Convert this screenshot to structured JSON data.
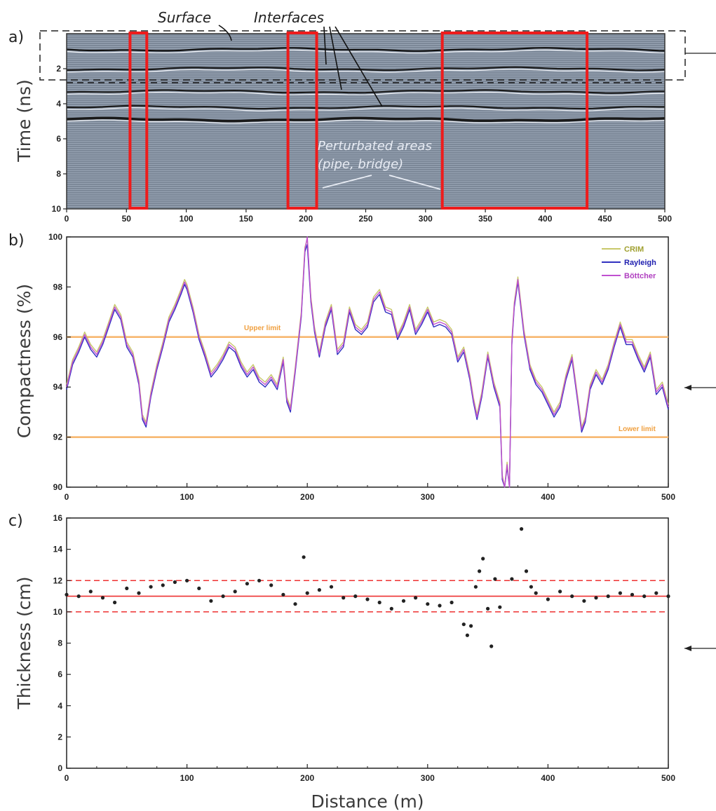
{
  "panels": {
    "a": {
      "label": "a)",
      "ylabel": "Time (ns)",
      "annotations": {
        "surface": "Surface",
        "interfaces": "Interfaces",
        "perturbated_line1": "Perturbated areas",
        "perturbated_line2": "(pipe, bridge)"
      },
      "xticks": [
        "0",
        "50",
        "100",
        "150",
        "200",
        "250",
        "300",
        "350",
        "400",
        "450",
        "500"
      ],
      "yticks": [
        "2",
        "4",
        "6",
        "8",
        "10"
      ]
    },
    "b": {
      "label": "b)",
      "upper_limit_label": "Upper limit",
      "lower_limit_label": "Lower limit"
    },
    "c": {
      "label": "c)"
    }
  },
  "colors": {
    "crim": "#c8c86a",
    "rayleigh": "#3030c0",
    "bottcher": "#c050d0",
    "limit_line": "#f7b46a",
    "red_box": "#ee1c1c",
    "mean_line": "#ee3030",
    "gpr_bg": "#7c8898"
  },
  "chart_data": [
    {
      "type": "heatmap",
      "panel": "a",
      "xlabel": "",
      "ylabel": "Time (ns)",
      "xlim": [
        0,
        500
      ],
      "ylim": [
        10,
        0
      ],
      "interfaces_ns": [
        0.9,
        2.0,
        3.3,
        4.2,
        4.9
      ],
      "dashed_box_ns": [
        0,
        2.8
      ],
      "perturbated_boxes_m": [
        [
          53,
          67
        ],
        [
          185,
          209
        ],
        [
          314,
          435
        ]
      ]
    },
    {
      "type": "line",
      "panel": "b",
      "xlabel": "",
      "ylabel": "Compactness (%)",
      "xlim": [
        0,
        500
      ],
      "ylim": [
        90,
        100
      ],
      "yticks": [
        90,
        92,
        94,
        96,
        98,
        100
      ],
      "xticks": [
        0,
        100,
        200,
        300,
        400,
        500
      ],
      "upper_limit": 96,
      "lower_limit": 92,
      "legend": [
        "CRIM",
        "Rayleigh",
        "Böttcher"
      ],
      "legend_position": "top-right",
      "x": [
        0,
        5,
        10,
        15,
        20,
        25,
        30,
        35,
        40,
        45,
        50,
        55,
        60,
        63,
        66,
        70,
        75,
        80,
        85,
        90,
        95,
        98,
        100,
        105,
        110,
        115,
        120,
        125,
        130,
        135,
        140,
        145,
        150,
        155,
        160,
        165,
        170,
        175,
        180,
        183,
        186,
        190,
        195,
        198,
        200,
        203,
        206,
        210,
        215,
        220,
        225,
        230,
        235,
        240,
        245,
        250,
        255,
        260,
        265,
        270,
        275,
        280,
        285,
        290,
        295,
        300,
        305,
        310,
        315,
        320,
        325,
        330,
        335,
        338,
        341,
        345,
        350,
        355,
        360,
        362,
        364,
        366,
        368,
        370,
        372,
        375,
        380,
        385,
        390,
        395,
        400,
        405,
        410,
        415,
        420,
        425,
        428,
        431,
        435,
        440,
        445,
        450,
        455,
        460,
        465,
        470,
        475,
        480,
        485,
        490,
        495,
        500
      ],
      "series": [
        {
          "name": "CRIM",
          "values": [
            94.1,
            95.1,
            95.6,
            96.2,
            95.7,
            95.4,
            95.9,
            96.6,
            97.3,
            96.9,
            95.8,
            95.4,
            94.3,
            92.9,
            92.6,
            93.8,
            94.9,
            95.8,
            96.8,
            97.3,
            97.9,
            98.3,
            98.1,
            97.2,
            96.1,
            95.4,
            94.6,
            94.9,
            95.3,
            95.8,
            95.6,
            95.0,
            94.6,
            94.9,
            94.4,
            94.2,
            94.5,
            94.1,
            95.2,
            93.6,
            93.2,
            94.8,
            97.0,
            99.6,
            99.9,
            97.6,
            96.4,
            95.4,
            96.6,
            97.3,
            95.5,
            95.8,
            97.2,
            96.5,
            96.3,
            96.6,
            97.6,
            97.9,
            97.2,
            97.1,
            96.1,
            96.6,
            97.3,
            96.3,
            96.7,
            97.2,
            96.6,
            96.7,
            96.6,
            96.3,
            95.2,
            95.6,
            94.5,
            93.6,
            92.9,
            93.8,
            95.4,
            94.2,
            93.4,
            90.5,
            90.0,
            91.0,
            90.0,
            95.9,
            97.4,
            98.4,
            96.3,
            94.9,
            94.3,
            94.0,
            93.5,
            93.0,
            93.4,
            94.5,
            95.3,
            93.5,
            92.4,
            92.8,
            94.1,
            94.7,
            94.3,
            94.9,
            95.8,
            96.6,
            95.9,
            95.9,
            95.3,
            94.8,
            95.4,
            93.9,
            94.2,
            93.3
          ]
        },
        {
          "name": "Rayleigh",
          "values": [
            93.9,
            94.9,
            95.4,
            96.0,
            95.5,
            95.2,
            95.7,
            96.4,
            97.1,
            96.7,
            95.6,
            95.2,
            94.1,
            92.7,
            92.4,
            93.6,
            94.7,
            95.6,
            96.6,
            97.1,
            97.7,
            98.1,
            97.9,
            97.0,
            95.9,
            95.2,
            94.4,
            94.7,
            95.1,
            95.6,
            95.4,
            94.8,
            94.4,
            94.7,
            94.2,
            94.0,
            94.3,
            93.9,
            95.0,
            93.4,
            93.0,
            94.6,
            96.8,
            99.4,
            99.7,
            97.4,
            96.2,
            95.2,
            96.4,
            97.1,
            95.3,
            95.6,
            97.0,
            96.3,
            96.1,
            96.4,
            97.4,
            97.7,
            97.0,
            96.9,
            95.9,
            96.4,
            97.1,
            96.1,
            96.5,
            97.0,
            96.4,
            96.5,
            96.4,
            96.1,
            95.0,
            95.4,
            94.3,
            93.4,
            92.7,
            93.6,
            95.2,
            94.0,
            93.2,
            90.3,
            90.0,
            90.8,
            90.0,
            95.7,
            97.2,
            98.2,
            96.1,
            94.7,
            94.1,
            93.8,
            93.3,
            92.8,
            93.2,
            94.3,
            95.1,
            93.3,
            92.2,
            92.6,
            93.9,
            94.5,
            94.1,
            94.7,
            95.6,
            96.4,
            95.7,
            95.7,
            95.1,
            94.6,
            95.2,
            93.7,
            94.0,
            93.1
          ]
        },
        {
          "name": "Böttcher",
          "values": [
            94.0,
            95.0,
            95.5,
            96.1,
            95.6,
            95.3,
            95.8,
            96.5,
            97.2,
            96.8,
            95.7,
            95.3,
            94.2,
            92.8,
            92.5,
            93.7,
            94.8,
            95.7,
            96.7,
            97.2,
            97.8,
            98.2,
            98.0,
            97.1,
            96.0,
            95.3,
            94.5,
            94.8,
            95.2,
            95.7,
            95.5,
            94.9,
            94.5,
            94.8,
            94.3,
            94.1,
            94.4,
            94.0,
            95.1,
            93.5,
            93.1,
            94.7,
            96.9,
            99.5,
            100,
            97.5,
            96.3,
            95.3,
            96.5,
            97.2,
            95.4,
            95.7,
            97.1,
            96.4,
            96.2,
            96.5,
            97.5,
            97.8,
            97.1,
            97.0,
            96.0,
            96.5,
            97.2,
            96.2,
            96.6,
            97.1,
            96.5,
            96.6,
            96.5,
            96.2,
            95.1,
            95.5,
            94.4,
            93.5,
            92.8,
            93.7,
            95.3,
            94.1,
            93.3,
            90.4,
            90.0,
            90.9,
            90.0,
            95.8,
            97.3,
            98.3,
            96.2,
            94.8,
            94.2,
            93.9,
            93.4,
            92.9,
            93.3,
            94.4,
            95.2,
            93.4,
            92.3,
            92.7,
            94.0,
            94.6,
            94.2,
            94.8,
            95.7,
            96.5,
            95.8,
            95.8,
            95.2,
            94.7,
            95.3,
            93.8,
            94.1,
            93.2
          ]
        }
      ]
    },
    {
      "type": "scatter",
      "panel": "c",
      "xlabel": "Distance (m)",
      "ylabel": "Thickness (cm)",
      "xlim": [
        0,
        500
      ],
      "ylim": [
        0,
        16
      ],
      "yticks": [
        0,
        2,
        4,
        6,
        8,
        10,
        12,
        14,
        16
      ],
      "xticks": [
        0,
        100,
        200,
        300,
        400,
        500
      ],
      "mean": 11,
      "band": [
        10,
        12
      ],
      "x": [
        0,
        10,
        20,
        30,
        40,
        50,
        60,
        70,
        80,
        90,
        100,
        110,
        120,
        130,
        140,
        150,
        160,
        170,
        180,
        190,
        197,
        200,
        210,
        220,
        230,
        240,
        250,
        260,
        270,
        280,
        290,
        300,
        310,
        320,
        330,
        333,
        336,
        340,
        343,
        346,
        350,
        353,
        356,
        360,
        370,
        378,
        382,
        386,
        390,
        400,
        410,
        420,
        430,
        440,
        450,
        460,
        470,
        480,
        490,
        500
      ],
      "y": [
        11.1,
        11.0,
        11.3,
        10.9,
        10.6,
        11.5,
        11.2,
        11.6,
        11.7,
        11.9,
        12.0,
        11.5,
        10.7,
        11.0,
        11.3,
        11.8,
        12.0,
        11.7,
        11.1,
        10.5,
        13.5,
        11.2,
        11.4,
        11.6,
        10.9,
        11.0,
        10.8,
        10.6,
        10.2,
        10.7,
        10.9,
        10.5,
        10.4,
        10.6,
        9.2,
        8.5,
        9.1,
        11.6,
        12.6,
        13.4,
        10.2,
        7.8,
        12.1,
        10.3,
        12.1,
        15.3,
        12.6,
        11.6,
        11.2,
        10.8,
        11.3,
        11.0,
        10.7,
        10.9,
        11.0,
        11.2,
        11.1,
        11.0,
        11.2,
        11.0
      ]
    }
  ]
}
